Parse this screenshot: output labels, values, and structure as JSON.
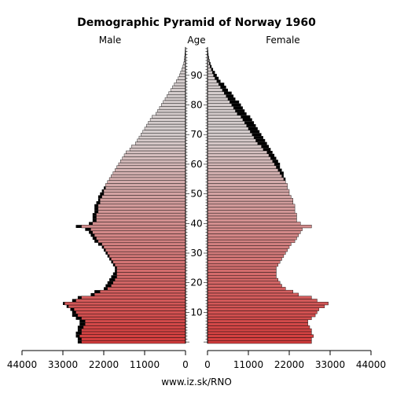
{
  "chart_data": {
    "type": "bar",
    "orientation": "horizontal-pyramid",
    "title": "Demographic Pyramid of Norway 1960",
    "left_label": "Male",
    "center_label": "Age",
    "right_label": "Female",
    "source": "www.iz.sk/RNO",
    "x_ticks_left": [
      "44000",
      "33000",
      "22000",
      "11000",
      "0"
    ],
    "x_ticks_right": [
      "0",
      "11000",
      "22000",
      "33000",
      "44000"
    ],
    "x_tick_values": [
      44000,
      33000,
      22000,
      11000,
      0
    ],
    "age_ticks": [
      0,
      10,
      20,
      30,
      40,
      50,
      60,
      70,
      80,
      90
    ],
    "age_range": [
      0,
      99
    ],
    "xlim": [
      0,
      44000
    ],
    "male": [
      29000,
      29000,
      29500,
      29500,
      29000,
      29000,
      28500,
      28500,
      29500,
      30500,
      30500,
      31000,
      32000,
      33000,
      30500,
      29000,
      25500,
      24500,
      22000,
      21500,
      21000,
      20500,
      20000,
      19500,
      19000,
      19000,
      19500,
      20000,
      20500,
      21000,
      21500,
      22000,
      22500,
      23500,
      24500,
      25000,
      25500,
      26000,
      27000,
      29500,
      26000,
      25000,
      25000,
      25000,
      24500,
      24500,
      24500,
      24000,
      23500,
      23500,
      23000,
      22500,
      22000,
      21500,
      21000,
      20500,
      20000,
      19500,
      19000,
      18500,
      18000,
      17500,
      17000,
      16500,
      16000,
      15000,
      14500,
      13500,
      13000,
      12500,
      12000,
      11500,
      11000,
      10500,
      10000,
      9500,
      9000,
      8000,
      7500,
      7000,
      6500,
      6000,
      5500,
      5000,
      4500,
      4000,
      3500,
      3000,
      2500,
      2000,
      1600,
      1300,
      1000,
      700,
      500,
      350,
      250,
      150,
      100,
      50
    ],
    "female": [
      28000,
      28000,
      28500,
      28000,
      28000,
      27500,
      27000,
      27000,
      28000,
      29000,
      29500,
      30000,
      31500,
      32500,
      29500,
      28000,
      24500,
      23000,
      21000,
      20000,
      19500,
      19000,
      18500,
      18500,
      18500,
      18500,
      19000,
      19500,
      20000,
      20500,
      21000,
      21500,
      22000,
      22500,
      23500,
      24000,
      24500,
      25000,
      25500,
      28000,
      25000,
      24000,
      24000,
      24000,
      23500,
      23500,
      23500,
      23000,
      23000,
      22500,
      22000,
      22000,
      21500,
      21500,
      21000,
      21000,
      20500,
      20500,
      20000,
      19500,
      19500,
      19000,
      18500,
      18000,
      17500,
      17000,
      16500,
      16000,
      15500,
      15000,
      14500,
      14000,
      13500,
      13000,
      12500,
      12000,
      11500,
      10500,
      10000,
      9500,
      9000,
      8500,
      7500,
      7000,
      6500,
      5500,
      5000,
      4500,
      3500,
      3000,
      2500,
      2000,
      1500,
      1100,
      800,
      550,
      400,
      250,
      150,
      80
    ],
    "colors": {
      "bar_young": "#d23c3c",
      "bar_old": "#d4cccc",
      "bar_stroke": "#000000",
      "excess": "#000000",
      "background": "#ffffff"
    }
  }
}
